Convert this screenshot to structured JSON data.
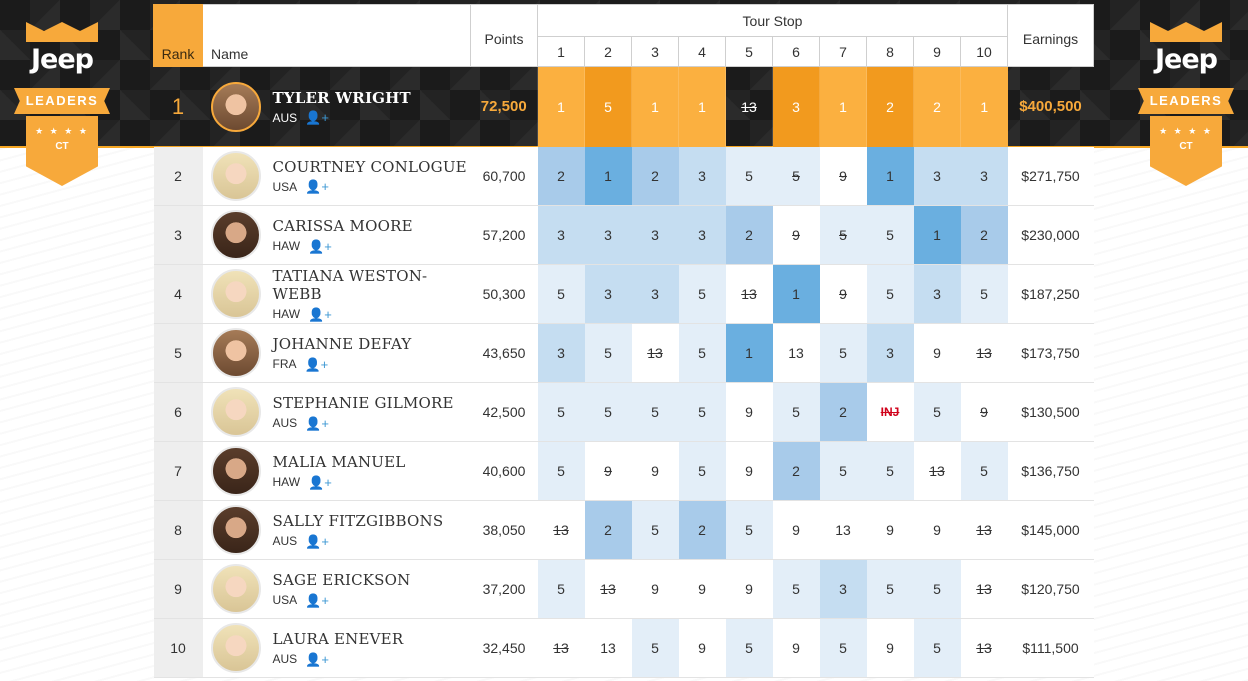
{
  "brand": {
    "logo_text": "Jeep",
    "ribbon": "LEADERS",
    "badge": "CT",
    "stars": "★ ★ ★ ★"
  },
  "header": {
    "rank": "Rank",
    "name": "Name",
    "points": "Points",
    "tour_stop": "Tour Stop",
    "earnings": "Earnings",
    "stops": [
      "1",
      "2",
      "3",
      "4",
      "5",
      "6",
      "7",
      "8",
      "9",
      "10"
    ]
  },
  "colors": {
    "accent": "#f7a93b",
    "blue_dark": "#6aafe0",
    "blue_light": "#e3eef8",
    "injury": "#d0021b"
  },
  "follow_icon": "add-user-icon",
  "rows": [
    {
      "rank": "1",
      "name": "TYLER WRIGHT",
      "country": "AUS",
      "points": "72,500",
      "earnings": "$400,500",
      "avatar": "brown",
      "stops": [
        {
          "v": "1",
          "s": 0
        },
        {
          "v": "5",
          "s": 5
        },
        {
          "v": "1",
          "s": 0
        },
        {
          "v": "1",
          "s": 0
        },
        {
          "v": "13",
          "s": 9
        },
        {
          "v": "3",
          "s": 5
        },
        {
          "v": "1",
          "s": 0
        },
        {
          "v": "2",
          "s": 5
        },
        {
          "v": "2",
          "s": 0
        },
        {
          "v": "1",
          "s": 0
        }
      ]
    },
    {
      "rank": "2",
      "name": "COURTNEY CONLOGUE",
      "country": "USA",
      "points": "60,700",
      "earnings": "$271,750",
      "avatar": "blond",
      "stops": [
        {
          "v": "2",
          "s": 3
        },
        {
          "v": "1",
          "s": 4
        },
        {
          "v": "2",
          "s": 3
        },
        {
          "v": "3",
          "s": 2
        },
        {
          "v": "5",
          "s": 1
        },
        {
          "v": "5",
          "s": 9
        },
        {
          "v": "9",
          "s": 8
        },
        {
          "v": "1",
          "s": 4
        },
        {
          "v": "3",
          "s": 2
        },
        {
          "v": "3",
          "s": 2
        }
      ]
    },
    {
      "rank": "3",
      "name": "CARISSA MOORE",
      "country": "HAW",
      "points": "57,200",
      "earnings": "$230,000",
      "avatar": "dark",
      "stops": [
        {
          "v": "3",
          "s": 2
        },
        {
          "v": "3",
          "s": 2
        },
        {
          "v": "3",
          "s": 2
        },
        {
          "v": "3",
          "s": 2
        },
        {
          "v": "2",
          "s": 3
        },
        {
          "v": "9",
          "s": 8
        },
        {
          "v": "5",
          "s": 9
        },
        {
          "v": "5",
          "s": 1
        },
        {
          "v": "1",
          "s": 4
        },
        {
          "v": "2",
          "s": 3
        }
      ]
    },
    {
      "rank": "4",
      "name": "TATIANA WESTON-WEBB",
      "country": "HAW",
      "points": "50,300",
      "earnings": "$187,250",
      "avatar": "blond",
      "stops": [
        {
          "v": "5",
          "s": 1
        },
        {
          "v": "3",
          "s": 2
        },
        {
          "v": "3",
          "s": 2
        },
        {
          "v": "5",
          "s": 1
        },
        {
          "v": "13",
          "s": 8
        },
        {
          "v": "1",
          "s": 4
        },
        {
          "v": "9",
          "s": 8
        },
        {
          "v": "5",
          "s": 1
        },
        {
          "v": "3",
          "s": 2
        },
        {
          "v": "5",
          "s": 1
        }
      ]
    },
    {
      "rank": "5",
      "name": "JOHANNE DEFAY",
      "country": "FRA",
      "points": "43,650",
      "earnings": "$173,750",
      "avatar": "brown",
      "stops": [
        {
          "v": "3",
          "s": 2
        },
        {
          "v": "5",
          "s": 1
        },
        {
          "v": "13",
          "s": 8
        },
        {
          "v": "5",
          "s": 1
        },
        {
          "v": "1",
          "s": 4
        },
        {
          "v": "13",
          "s": 0
        },
        {
          "v": "5",
          "s": 1
        },
        {
          "v": "3",
          "s": 2
        },
        {
          "v": "9",
          "s": 0
        },
        {
          "v": "13",
          "s": 8
        }
      ]
    },
    {
      "rank": "6",
      "name": "STEPHANIE GILMORE",
      "country": "AUS",
      "points": "42,500",
      "earnings": "$130,500",
      "avatar": "blond",
      "stops": [
        {
          "v": "5",
          "s": 1
        },
        {
          "v": "5",
          "s": 1
        },
        {
          "v": "5",
          "s": 1
        },
        {
          "v": "5",
          "s": 1
        },
        {
          "v": "9",
          "s": 0
        },
        {
          "v": "5",
          "s": 1
        },
        {
          "v": "2",
          "s": 3
        },
        {
          "v": "INJ",
          "s": 7
        },
        {
          "v": "5",
          "s": 1
        },
        {
          "v": "9",
          "s": 8
        }
      ]
    },
    {
      "rank": "7",
      "name": "MALIA MANUEL",
      "country": "HAW",
      "points": "40,600",
      "earnings": "$136,750",
      "avatar": "dark",
      "stops": [
        {
          "v": "5",
          "s": 1
        },
        {
          "v": "9",
          "s": 8
        },
        {
          "v": "9",
          "s": 0
        },
        {
          "v": "5",
          "s": 1
        },
        {
          "v": "9",
          "s": 0
        },
        {
          "v": "2",
          "s": 3
        },
        {
          "v": "5",
          "s": 1
        },
        {
          "v": "5",
          "s": 1
        },
        {
          "v": "13",
          "s": 8
        },
        {
          "v": "5",
          "s": 1
        }
      ]
    },
    {
      "rank": "8",
      "name": "SALLY FITZGIBBONS",
      "country": "AUS",
      "points": "38,050",
      "earnings": "$145,000",
      "avatar": "dark",
      "stops": [
        {
          "v": "13",
          "s": 8
        },
        {
          "v": "2",
          "s": 3
        },
        {
          "v": "5",
          "s": 1
        },
        {
          "v": "2",
          "s": 3
        },
        {
          "v": "5",
          "s": 1
        },
        {
          "v": "9",
          "s": 0
        },
        {
          "v": "13",
          "s": 0
        },
        {
          "v": "9",
          "s": 0
        },
        {
          "v": "9",
          "s": 0
        },
        {
          "v": "13",
          "s": 8
        }
      ]
    },
    {
      "rank": "9",
      "name": "SAGE ERICKSON",
      "country": "USA",
      "points": "37,200",
      "earnings": "$120,750",
      "avatar": "blond",
      "stops": [
        {
          "v": "5",
          "s": 1
        },
        {
          "v": "13",
          "s": 8
        },
        {
          "v": "9",
          "s": 0
        },
        {
          "v": "9",
          "s": 0
        },
        {
          "v": "9",
          "s": 0
        },
        {
          "v": "5",
          "s": 1
        },
        {
          "v": "3",
          "s": 2
        },
        {
          "v": "5",
          "s": 1
        },
        {
          "v": "5",
          "s": 1
        },
        {
          "v": "13",
          "s": 8
        }
      ]
    },
    {
      "rank": "10",
      "name": "LAURA ENEVER",
      "country": "AUS",
      "points": "32,450",
      "earnings": "$111,500",
      "avatar": "blond",
      "stops": [
        {
          "v": "13",
          "s": 8
        },
        {
          "v": "13",
          "s": 0
        },
        {
          "v": "5",
          "s": 1
        },
        {
          "v": "9",
          "s": 0
        },
        {
          "v": "5",
          "s": 1
        },
        {
          "v": "9",
          "s": 0
        },
        {
          "v": "5",
          "s": 1
        },
        {
          "v": "9",
          "s": 0
        },
        {
          "v": "5",
          "s": 1
        },
        {
          "v": "13",
          "s": 8
        }
      ]
    }
  ]
}
